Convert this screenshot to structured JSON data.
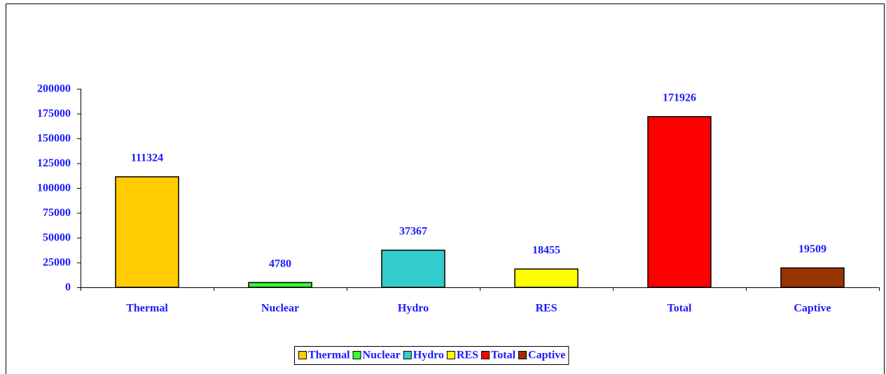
{
  "chart_data": {
    "type": "bar",
    "categories": [
      "Thermal",
      "Nuclear",
      "Hydro",
      "RES",
      "Total",
      "Captive"
    ],
    "values": [
      111324,
      4780,
      37367,
      18455,
      171926,
      19509
    ],
    "colors": [
      "#ffcc00",
      "#33ff33",
      "#33cccc",
      "#ffff00",
      "#ff0000",
      "#993300"
    ],
    "ylim": [
      0,
      200000
    ],
    "yticks": [
      0,
      25000,
      50000,
      75000,
      100000,
      125000,
      150000,
      175000,
      200000
    ],
    "legend": "bottom",
    "value_labels_shown": true
  }
}
